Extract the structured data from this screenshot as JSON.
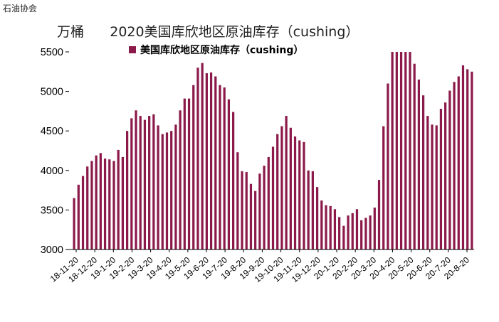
{
  "page": {
    "watermark": "石油协会"
  },
  "chart_data": {
    "type": "bar",
    "title": "万桶      2020美国库欣地区原油库存（cushing）",
    "legend": [
      "美国库欣地区原油库存（cushing）"
    ],
    "legend_position": "top-left",
    "grid": false,
    "ylim": [
      3000,
      5500
    ],
    "yticks": [
      3000,
      3500,
      4000,
      4500,
      5000,
      5500
    ],
    "xtick_labels": [
      "18-11-20",
      "18-12-20",
      "19-1-20",
      "19-2-20",
      "19-3-20",
      "19-4-20",
      "19-5-20",
      "19-6-20",
      "19-7-20",
      "19-8-20",
      "19-9-20",
      "19-10-20",
      "19-11-20",
      "19-12-20",
      "20-1-20",
      "20-2-20",
      "20-3-20",
      "20-4-20",
      "20-5-20",
      "20-6-20",
      "20-7-20",
      "20-8-20"
    ],
    "colors": {
      "bar": "#8b1a4a",
      "axis": "#000000"
    },
    "series": [
      {
        "name": "美国库欣地区原油库存（cushing）",
        "values": [
          3650,
          3820,
          3930,
          4050,
          4120,
          4190,
          4220,
          4150,
          4140,
          4120,
          4260,
          4170,
          4500,
          4660,
          4760,
          4690,
          4640,
          4690,
          4710,
          4570,
          4460,
          4480,
          4500,
          4580,
          4760,
          4910,
          4910,
          5080,
          5300,
          5360,
          5230,
          5240,
          5190,
          5080,
          5050,
          4900,
          4740,
          4230,
          3990,
          3980,
          3830,
          3740,
          3960,
          4060,
          4170,
          4300,
          4460,
          4560,
          4690,
          4540,
          4430,
          4380,
          4360,
          4000,
          3990,
          3790,
          3620,
          3560,
          3550,
          3510,
          3410,
          3300,
          3430,
          3460,
          3510,
          3370,
          3400,
          3430,
          3530,
          3880,
          4560,
          5100,
          5500,
          5500,
          5500,
          5500,
          5500,
          5350,
          5150,
          4950,
          4690,
          4580,
          4570,
          4780,
          4860,
          5010,
          5120,
          5190,
          5330,
          5280,
          5250
        ]
      }
    ]
  }
}
